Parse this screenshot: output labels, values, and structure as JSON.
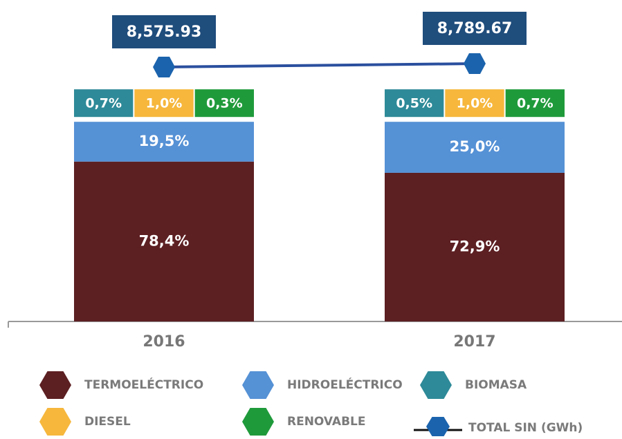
{
  "chart_data": {
    "type": "bar",
    "stacked": true,
    "categories": [
      "2016",
      "2017"
    ],
    "series": [
      {
        "name": "TERMOELÉCTRICO",
        "color": "#5c1f22",
        "values": [
          78.4,
          72.9
        ],
        "value_labels": [
          "78,4%",
          "72,9%"
        ]
      },
      {
        "name": "HIDROELÉCTRICO",
        "color": "#5591d5",
        "values": [
          19.5,
          25.0
        ],
        "value_labels": [
          "19,5%",
          "25,0%"
        ]
      },
      {
        "name": "BIOMASA",
        "color": "#2e8a98",
        "values": [
          0.7,
          0.5
        ],
        "value_labels": [
          "0,7%",
          "0,5%"
        ]
      },
      {
        "name": "DIESEL",
        "color": "#f6b73c",
        "values": [
          1.0,
          1.0
        ],
        "value_labels": [
          "1,0%",
          "1,0%"
        ]
      },
      {
        "name": "RENOVABLE",
        "color": "#1f9a3b",
        "values": [
          0.3,
          0.7
        ],
        "value_labels": [
          "0,3%",
          "0,7%"
        ]
      },
      {
        "name": "TOTAL SIN (GWh)",
        "color": "#1b63ad",
        "type": "line",
        "axis": "y2",
        "values": [
          8575.93,
          8789.67
        ],
        "value_labels": [
          "8,575.93",
          "8,789.67"
        ]
      }
    ]
  }
}
